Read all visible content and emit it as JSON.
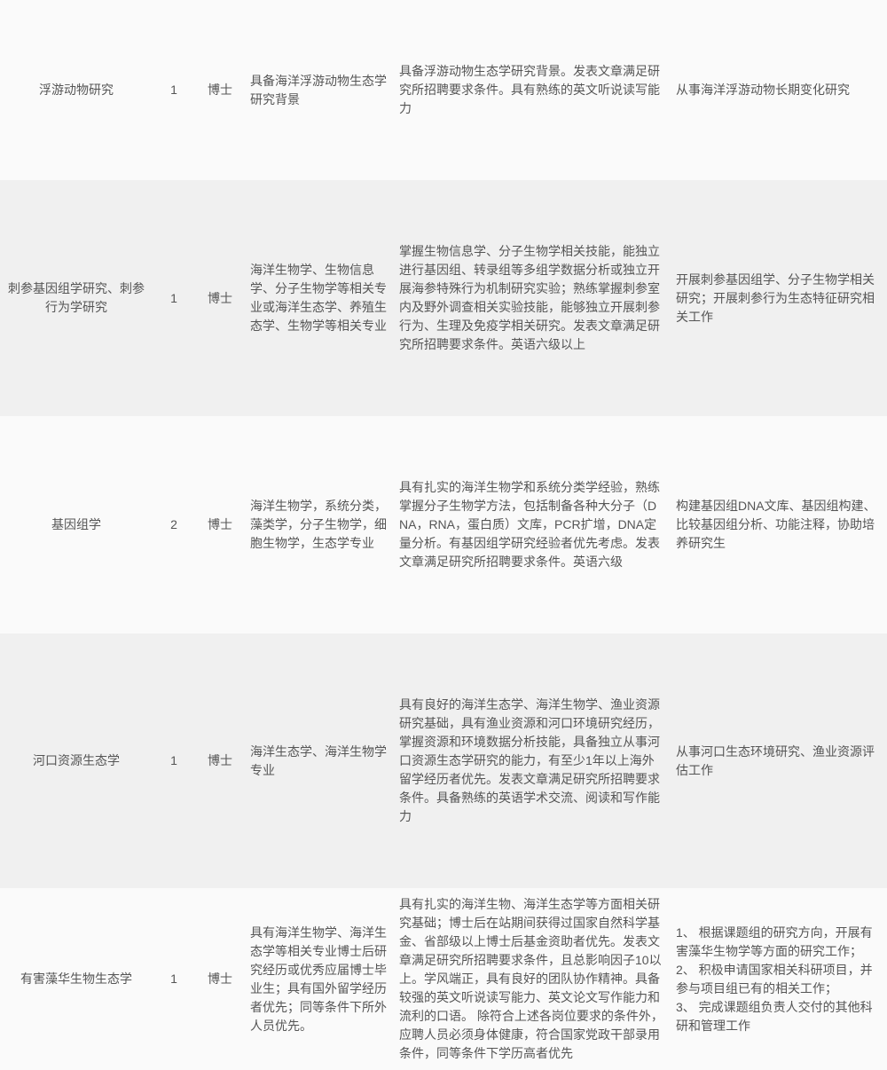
{
  "rows": [
    {
      "position": "浮游动物研究",
      "count": "1",
      "degree": "博士",
      "major": "具备海洋浮游动物生态学研究背景",
      "requirement": "具备浮游动物生态学研究背景。发表文章满足研究所招聘要求条件。具有熟练的英文听说读写能力",
      "duty": "从事海洋浮游动物长期变化研究"
    },
    {
      "position": "刺参基因组学研究、刺参行为学研究",
      "count": "1",
      "degree": "博士",
      "major": "海洋生物学、生物信息学、分子生物学等相关专业或海洋生态学、养殖生态学、生物学等相关专业",
      "requirement": "掌握生物信息学、分子生物学相关技能，能独立进行基因组、转录组等多组学数据分析或独立开展海参特殊行为机制研究实验；熟练掌握刺参室内及野外调查相关实验技能，能够独立开展刺参行为、生理及免疫学相关研究。发表文章满足研究所招聘要求条件。英语六级以上",
      "duty": "开展刺参基因组学、分子生物学相关研究；开展刺参行为生态特征研究相关工作"
    },
    {
      "position": "基因组学",
      "count": "2",
      "degree": "博士",
      "major": "海洋生物学，系统分类，藻类学，分子生物学，细胞生物学，生态学专业",
      "requirement": "具有扎实的海洋生物学和系统分类学经验，熟练掌握分子生物学方法，包括制备各种大分子（DNA，RNA，蛋白质）文库，PCR扩增，DNA定量分析。有基因组学研究经验者优先考虑。发表文章满足研究所招聘要求条件。英语六级",
      "duty": "构建基因组DNA文库、基因组构建、比较基因组分析、功能注释，协助培养研究生"
    },
    {
      "position": "河口资源生态学",
      "count": "1",
      "degree": "博士",
      "major": "海洋生态学、海洋生物学专业",
      "requirement": "具有良好的海洋生态学、海洋生物学、渔业资源研究基础，具有渔业资源和河口环境研究经历，掌握资源和环境数据分析技能，具备独立从事河口资源生态学研究的能力，有至少1年以上海外留学经历者优先。发表文章满足研究所招聘要求条件。具备熟练的英语学术交流、阅读和写作能力",
      "duty": "从事河口生态环境研究、渔业资源评估工作"
    },
    {
      "position": "有害藻华生物生态学",
      "count": "1",
      "degree": "博士",
      "major": "具有海洋生物学、海洋生态学等相关专业博士后研究经历或优秀应届博士毕业生；具有国外留学经历者优先；同等条件下所外人员优先。",
      "requirement": "具有扎实的海洋生物、海洋生态学等方面相关研究基础；博士后在站期间获得过国家自然科学基金、省部级以上博士后基金资助者优先。发表文章满足研究所招聘要求条件，且总影响因子10以上。学风端正，具有良好的团队协作精神。具备较强的英文听说读写能力、英文论文写作能力和流利的口语。 除符合上述各岗位要求的条件外，应聘人员必须身体健康，符合国家党政干部录用条件，同等条件下学历高者优先",
      "duty": "1、 根据课题组的研究方向，开展有害藻华生物学等方面的研究工作；\n2、 积极申请国家相关科研项目，并参与项目组已有的相关工作；\n3、 完成课题组负责人交付的其他科研和管理工作"
    }
  ]
}
